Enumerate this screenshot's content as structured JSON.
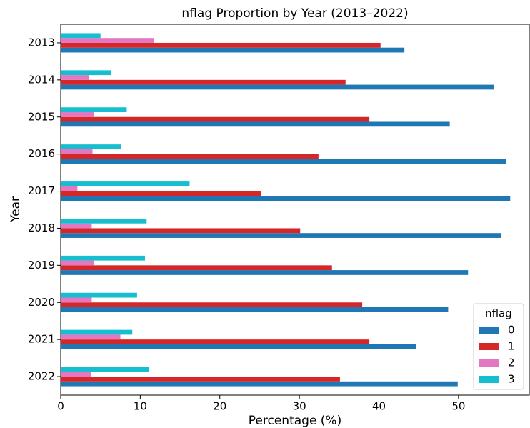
{
  "chart_data": {
    "type": "barh",
    "title": "nflag Proportion by Year (2013–2022)",
    "x_label": "Percentage (%)",
    "y_label": "Year",
    "categories": [
      "2013",
      "2014",
      "2015",
      "2016",
      "2017",
      "2018",
      "2019",
      "2020",
      "2021",
      "2022"
    ],
    "series": [
      {
        "name": "0",
        "color": "#1f77b4",
        "values": [
          43.2,
          54.5,
          48.9,
          56.0,
          56.5,
          55.4,
          51.2,
          48.7,
          44.7,
          49.9
        ]
      },
      {
        "name": "1",
        "color": "#d62728",
        "values": [
          40.2,
          35.8,
          38.8,
          32.4,
          25.2,
          30.1,
          34.1,
          37.9,
          38.8,
          35.1
        ]
      },
      {
        "name": "2",
        "color": "#e377c2",
        "values": [
          11.7,
          3.6,
          4.2,
          4.0,
          2.1,
          3.9,
          4.2,
          3.9,
          7.5,
          3.8
        ]
      },
      {
        "name": "3",
        "color": "#17becf",
        "values": [
          5.0,
          6.3,
          8.3,
          7.6,
          16.2,
          10.8,
          10.6,
          9.6,
          9.0,
          11.1
        ]
      }
    ],
    "legend_title": "nflag",
    "legend_position": "lower right",
    "xlim": [
      0,
      58.9
    ],
    "xticks": [
      0,
      10,
      20,
      30,
      40,
      50
    ],
    "grid": false
  }
}
